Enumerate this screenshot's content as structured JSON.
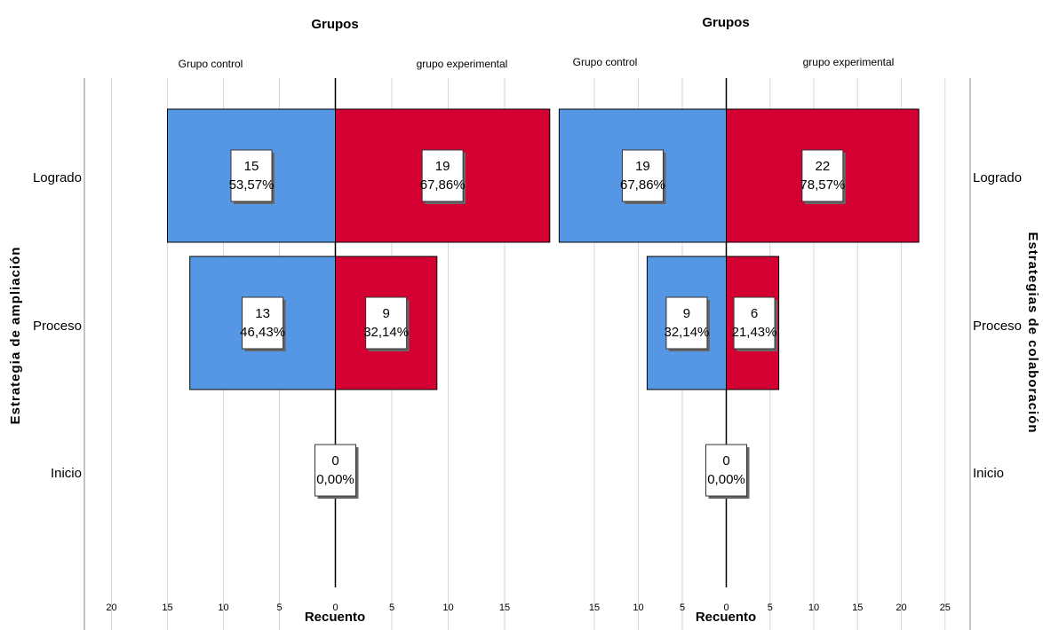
{
  "chart_data": [
    {
      "type": "bar",
      "orientation": "horizontal-population-pyramid",
      "title": "Grupos",
      "groups": [
        "Grupo control",
        "grupo experimental"
      ],
      "ylabel": "Estrategia de ampliación",
      "xlabel": "Recuento",
      "categories": [
        "Logrado",
        "Proceso",
        "Inicio"
      ],
      "series": [
        {
          "name": "Grupo control",
          "color": "#5597E4",
          "values": [
            15,
            13,
            0
          ],
          "labels": [
            "53,57%",
            "46,43%",
            "0,00%"
          ]
        },
        {
          "name": "grupo experimental",
          "color": "#D50032",
          "values": [
            19,
            9,
            0
          ],
          "labels": [
            "67,86%",
            "32,14%",
            "0,00%"
          ]
        }
      ],
      "left_ticks": [
        "20",
        "15",
        "10",
        "5",
        "0"
      ],
      "right_ticks": [
        "5",
        "10",
        "15"
      ],
      "xlim_left": 22,
      "xlim_right": 19.8,
      "grid": true
    },
    {
      "type": "bar",
      "orientation": "horizontal-population-pyramid",
      "title": "Grupos",
      "groups": [
        "Grupo control",
        "grupo experimental"
      ],
      "ylabel": "Estrategias de colaboración",
      "xlabel": "Recuento",
      "categories": [
        "Logrado",
        "Proceso",
        "Inicio"
      ],
      "series": [
        {
          "name": "Grupo control",
          "color": "#5597E4",
          "values": [
            19,
            9,
            0
          ],
          "labels": [
            "67,86%",
            "32,14%",
            "0,00%"
          ]
        },
        {
          "name": "grupo experimental",
          "color": "#D50032",
          "values": [
            22,
            6,
            0
          ],
          "labels": [
            "78,57%",
            "21,43%",
            "0,00%"
          ]
        }
      ],
      "left_ticks": [
        "15",
        "10",
        "5",
        "0"
      ],
      "right_ticks": [
        "5",
        "10",
        "15",
        "20",
        "25"
      ],
      "xlim_left": 19.2,
      "xlim_right": 27.8,
      "grid": true
    }
  ]
}
